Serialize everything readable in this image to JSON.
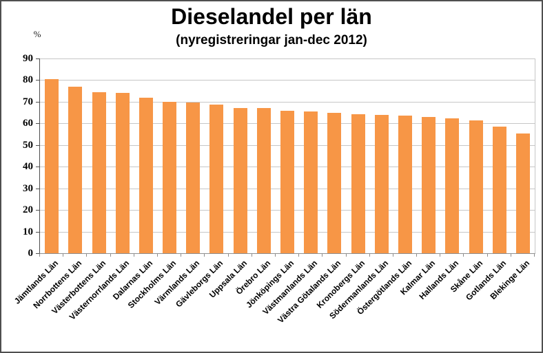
{
  "chart": {
    "title": "Dieselandel per län",
    "subtitle": "(nyregistreringar jan-dec 2012)",
    "unit_label": "%"
  },
  "chart_data": {
    "type": "bar",
    "title": "Dieselandel per län",
    "subtitle": "(nyregistreringar jan-dec 2012)",
    "categories": [
      "Jämtlands Län",
      "Norrbottens Län",
      "Västerbottens Län",
      "Västernorrlands Län",
      "Dalarnas Län",
      "Stockholms Län",
      "Värmlands Län",
      "Gävleborgs Län",
      "Uppsala Län",
      "Örebro Län",
      "Jönköpings Län",
      "Västmanlands Län",
      "Västra Götalands Län",
      "Kronobergs Län",
      "Södermanlands Län",
      "Östergötlands Län",
      "Kalmar Län",
      "Hallands Län",
      "Skåne Län",
      "Gotlands Län",
      "Blekinge Län"
    ],
    "values": [
      80.6,
      77.0,
      74.4,
      74.1,
      72.0,
      69.9,
      69.7,
      68.8,
      67.1,
      67.0,
      65.8,
      65.4,
      64.9,
      64.1,
      63.9,
      63.5,
      63.1,
      62.2,
      61.4,
      58.6,
      55.4
    ],
    "xlabel": "",
    "ylabel": "%",
    "ylim": [
      0,
      90
    ],
    "ytick_interval": 10,
    "yticks": [
      0,
      10,
      20,
      30,
      40,
      50,
      60,
      70,
      80,
      90
    ],
    "grid": true,
    "legend_position": "none",
    "bar_color": "#F79646",
    "gridline_color": "#c6c6c6"
  }
}
